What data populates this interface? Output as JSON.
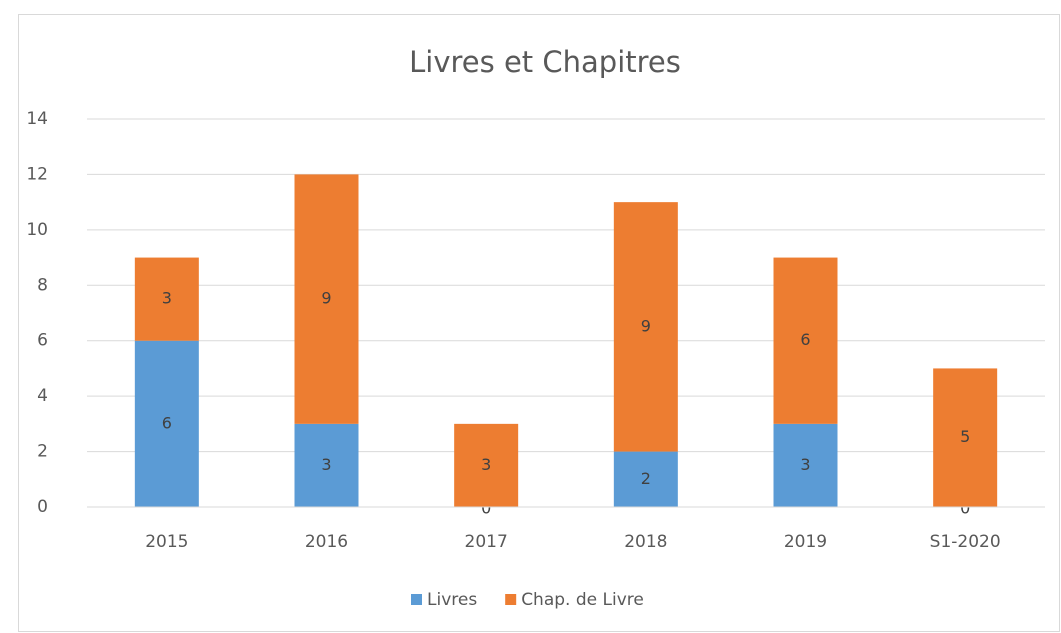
{
  "chart_data": {
    "type": "stacked_bar",
    "title": "Livres et Chapitres",
    "categories": [
      "2015",
      "2016",
      "2017",
      "2018",
      "2019",
      "S1-2020"
    ],
    "series": [
      {
        "name": "Livres",
        "color": "#5b9bd5",
        "values": [
          6,
          3,
          0,
          2,
          3,
          0
        ]
      },
      {
        "name": "Chap. de Livre",
        "color": "#ed7d31",
        "values": [
          3,
          9,
          3,
          9,
          6,
          5
        ]
      }
    ],
    "ylim": [
      0,
      14
    ],
    "yticks": [
      0,
      2,
      4,
      6,
      8,
      10,
      12,
      14
    ],
    "grid": true,
    "legend": "bottom"
  }
}
